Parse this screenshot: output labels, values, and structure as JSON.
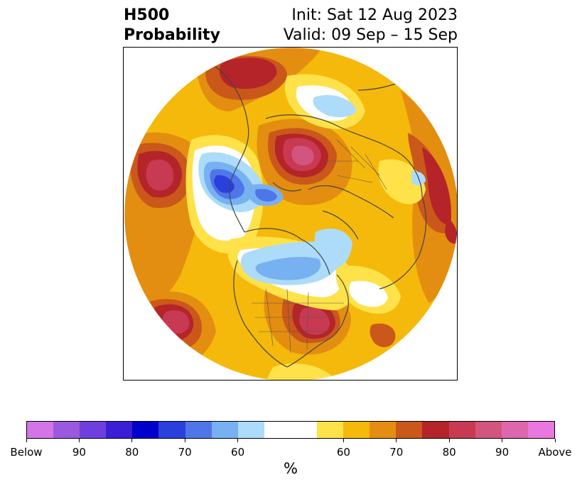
{
  "title": {
    "line1": "H500",
    "line2": "Probability",
    "init": "Init: Sat 12 Aug 2023",
    "valid": "Valid: 09 Sep – 15 Sep"
  },
  "map": {
    "projection": "north-polar-stereographic",
    "field": "500 hPa height anomaly probability",
    "features": [
      {
        "name": "above-max-north-central-russia",
        "category": "Above 80-90%"
      },
      {
        "name": "below-max-north-atlantic",
        "category": "Below 80-90%"
      },
      {
        "name": "above-max-eastern-us",
        "category": "Above 80-90%"
      },
      {
        "name": "above-max-north-pacific",
        "category": "Above 80-85%"
      },
      {
        "name": "above-max-central-pacific",
        "category": "Above 80-85%"
      },
      {
        "name": "below-canada-hudson",
        "category": "Below 60-70%"
      },
      {
        "name": "below-east-siberia",
        "category": "Below 60%"
      }
    ]
  },
  "colorbar": {
    "colors": [
      "#d374e8",
      "#9b59e0",
      "#6d3fdc",
      "#3a1fd6",
      "#0000cc",
      "#2a3fdc",
      "#4e76e8",
      "#78b1f2",
      "#acdcfa",
      "#ffffff",
      "#ffffff",
      "#ffe14a",
      "#f5b90b",
      "#e38d11",
      "#c9581a",
      "#b42428",
      "#c73a52",
      "#d1557f",
      "#de66ac",
      "#e878df"
    ],
    "ticks": [
      "Below",
      "90",
      "80",
      "70",
      "60",
      "60",
      "70",
      "80",
      "90",
      "Above"
    ],
    "unit": "%"
  }
}
